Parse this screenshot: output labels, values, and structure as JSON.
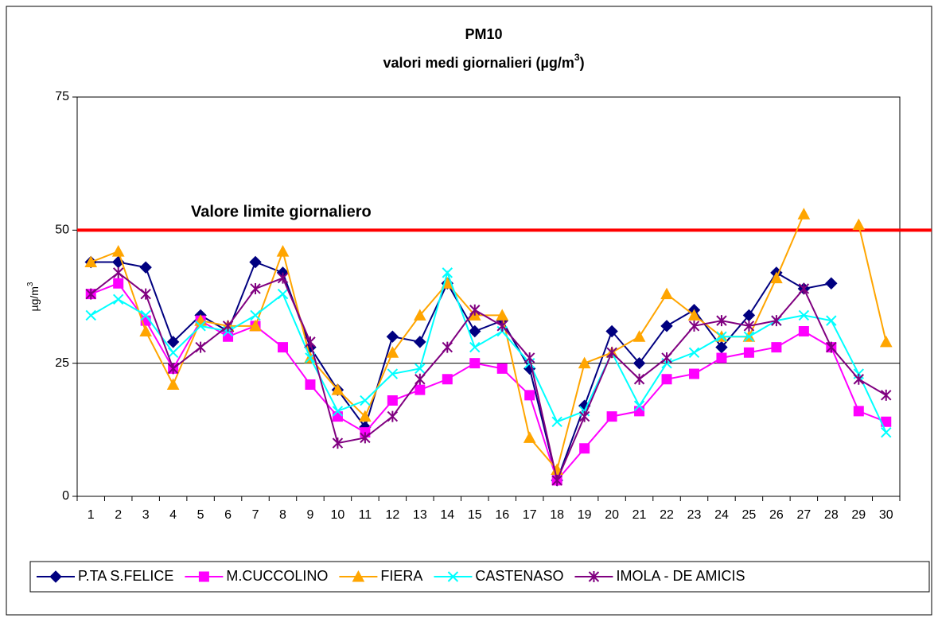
{
  "chart_data": {
    "type": "line",
    "title": "PM10",
    "subtitle_parts": [
      "valori medi giornalieri (µg/m",
      "3",
      ")"
    ],
    "y_label_parts": [
      "µg/m",
      "3"
    ],
    "categories": [
      "1",
      "2",
      "3",
      "4",
      "5",
      "6",
      "7",
      "8",
      "9",
      "10",
      "11",
      "12",
      "13",
      "14",
      "15",
      "16",
      "17",
      "18",
      "19",
      "20",
      "21",
      "22",
      "23",
      "24",
      "25",
      "26",
      "27",
      "28",
      "29",
      "30"
    ],
    "ylim": [
      0,
      75
    ],
    "yticks": [
      0,
      25,
      50,
      75
    ],
    "grid": true,
    "reference_line": {
      "value": 50,
      "label": "Valore limite giornaliero",
      "color": "#ff0000"
    },
    "legend": "bottom",
    "series": [
      {
        "name": "P.TA S.FELICE",
        "color": "#000080",
        "marker": "diamond",
        "values": [
          44,
          44,
          43,
          29,
          34,
          31,
          44,
          42,
          28,
          20,
          13,
          30,
          29,
          40,
          31,
          33,
          24,
          3,
          17,
          31,
          25,
          32,
          35,
          28,
          34,
          42,
          39,
          40,
          null,
          null
        ]
      },
      {
        "name": "M.CUCCOLINO",
        "color": "#ff00ff",
        "marker": "square",
        "values": [
          38,
          40,
          33,
          24,
          33,
          30,
          32,
          28,
          21,
          15,
          12,
          18,
          20,
          22,
          25,
          24,
          19,
          3,
          9,
          15,
          16,
          22,
          23,
          26,
          27,
          28,
          31,
          28,
          16,
          14
        ]
      },
      {
        "name": "FIERA",
        "color": "#ffa500",
        "marker": "triangle",
        "values": [
          44,
          46,
          31,
          21,
          33,
          32,
          32,
          46,
          26,
          20,
          15,
          27,
          34,
          40,
          34,
          34,
          11,
          5,
          25,
          27,
          30,
          38,
          34,
          30,
          30,
          41,
          53,
          null,
          51,
          29
        ]
      },
      {
        "name": "CASTENASO",
        "color": "#00ffff",
        "marker": "x",
        "values": [
          34,
          37,
          34,
          27,
          32,
          31,
          34,
          38,
          26,
          16,
          18,
          23,
          24,
          42,
          28,
          31,
          25,
          14,
          16,
          27,
          17,
          25,
          27,
          30,
          30,
          33,
          34,
          33,
          23,
          12
        ]
      },
      {
        "name": "IMOLA - DE AMICIS",
        "color": "#800080",
        "marker": "star",
        "values": [
          38,
          42,
          38,
          24,
          28,
          32,
          39,
          41,
          29,
          10,
          11,
          15,
          22,
          28,
          35,
          32,
          26,
          3,
          15,
          27,
          22,
          26,
          32,
          33,
          32,
          33,
          39,
          28,
          22,
          19
        ]
      }
    ]
  }
}
